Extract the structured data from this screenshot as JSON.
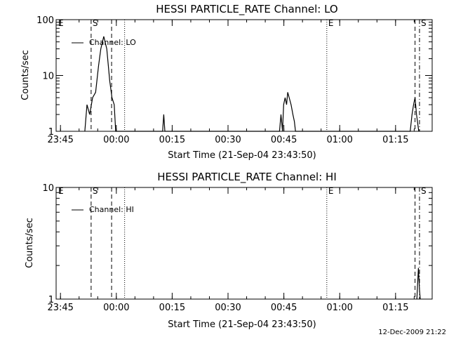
{
  "chart_data": [
    {
      "type": "line",
      "title": "HESSI PARTICLE_RATE Channel: LO",
      "xlabel": "Start Time (21-Sep-04 23:43:50)",
      "ylabel": "Counts/sec",
      "y_scale": "log",
      "ylim": [
        1,
        100
      ],
      "y_ticks": [
        "1",
        "10",
        "100"
      ],
      "x_ticks": [
        "23:45",
        "00:00",
        "00:15",
        "00:30",
        "00:45",
        "01:00",
        "01:15"
      ],
      "x_tick_minutes": [
        1.17,
        16.17,
        31.17,
        46.17,
        61.17,
        76.17,
        91.17
      ],
      "xlim_minutes": [
        0,
        101
      ],
      "legend": "Channel: LO",
      "legend_position": "top-left",
      "series": [
        {
          "x_minutes": [
            7.7,
            8.3,
            9.0,
            9.8,
            10.6,
            11.4,
            12.0,
            12.8,
            13.6,
            14.4,
            15.0,
            15.6,
            16.0,
            28.6,
            28.9,
            29.2,
            60.0,
            60.4,
            60.8,
            61.1,
            61.5,
            61.9,
            62.2,
            62.6,
            63.1,
            63.6,
            64.0,
            64.3,
            95.1,
            95.6,
            96.0,
            96.4,
            96.8,
            97.4
          ],
          "y_values": [
            1,
            3,
            2,
            4,
            5,
            15,
            30,
            50,
            30,
            8,
            4,
            3,
            1,
            1,
            2,
            1,
            1,
            2,
            1,
            3,
            4,
            3,
            5,
            4,
            3,
            2,
            1.5,
            1,
            1,
            2,
            3,
            4,
            2,
            1
          ]
        }
      ],
      "markers": [
        {
          "label": "E",
          "minutes": 0.2,
          "style": "none"
        },
        {
          "label": "S",
          "minutes": 9.4,
          "style": "dashed"
        },
        {
          "label": "",
          "minutes": 14.9,
          "style": "dashed"
        },
        {
          "label": "",
          "minutes": 18.4,
          "style": "dotted"
        },
        {
          "label": "E",
          "minutes": 72.7,
          "style": "dotted"
        },
        {
          "label": "",
          "minutes": 96.4,
          "style": "dashed"
        },
        {
          "label": "S",
          "minutes": 97.6,
          "style": "dashdot"
        }
      ]
    },
    {
      "type": "line",
      "title": "HESSI PARTICLE_RATE Channel: HI",
      "xlabel": "Start Time (21-Sep-04 23:43:50)",
      "ylabel": "Counts/sec",
      "y_scale": "log",
      "ylim": [
        1,
        10
      ],
      "y_ticks": [
        "1",
        "10"
      ],
      "x_ticks": [
        "23:45",
        "00:00",
        "00:15",
        "00:30",
        "00:45",
        "01:00",
        "01:15"
      ],
      "x_tick_minutes": [
        1.17,
        16.17,
        31.17,
        46.17,
        61.17,
        76.17,
        91.17
      ],
      "xlim_minutes": [
        0,
        101
      ],
      "legend": "Channel: HI",
      "legend_position": "top-left",
      "series": [
        {
          "x_minutes": [
            96.9,
            97.3,
            97.6,
            97.8
          ],
          "y_values": [
            1,
            1.9,
            1.2,
            1
          ]
        }
      ],
      "markers": [
        {
          "label": "E",
          "minutes": 0.2,
          "style": "none"
        },
        {
          "label": "S",
          "minutes": 9.4,
          "style": "dashed"
        },
        {
          "label": "",
          "minutes": 14.9,
          "style": "dashed"
        },
        {
          "label": "",
          "minutes": 18.4,
          "style": "dotted"
        },
        {
          "label": "E",
          "minutes": 72.7,
          "style": "dotted"
        },
        {
          "label": "",
          "minutes": 96.4,
          "style": "dashed"
        },
        {
          "label": "S",
          "minutes": 97.6,
          "style": "dashdot"
        }
      ]
    }
  ],
  "footer": {
    "timestamp": "12-Dec-2009 21:22"
  }
}
